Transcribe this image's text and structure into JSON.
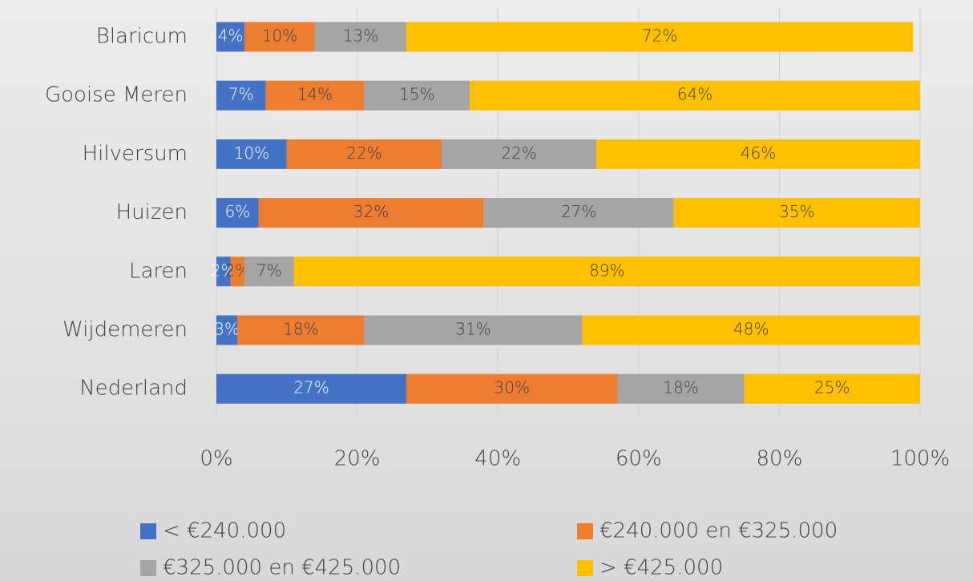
{
  "chart_data": {
    "type": "stacked_barh",
    "categories": [
      "Blaricum",
      "Gooise Meren",
      "Hilversum",
      "Huizen",
      "Laren",
      "Wijdemeren",
      "Nederland"
    ],
    "series": [
      {
        "name": "< €240.000",
        "color": "#4472c4",
        "values": [
          4,
          7,
          10,
          6,
          2,
          3,
          27
        ],
        "value_labels": [
          "4%",
          "7%",
          "10%",
          "6%",
          "2%",
          "3%",
          "27%"
        ]
      },
      {
        "name": "€240.000 en €325.000",
        "color": "#ed7d31",
        "values": [
          10,
          14,
          22,
          32,
          2,
          18,
          30
        ],
        "value_labels": [
          "10%",
          "14%",
          "22%",
          "32%",
          "2%",
          "18%",
          "30%"
        ]
      },
      {
        "name": "€325.000 en €425.000",
        "color": "#a5a5a5",
        "values": [
          13,
          15,
          22,
          27,
          7,
          31,
          18
        ],
        "value_labels": [
          "13%",
          "15%",
          "22%",
          "27%",
          "7%",
          "31%",
          "18%"
        ]
      },
      {
        "name": "> €425.000",
        "color": "#ffc000",
        "values": [
          72,
          64,
          46,
          35,
          89,
          48,
          25
        ],
        "value_labels": [
          "72%",
          "64%",
          "46%",
          "35%",
          "89%",
          "48%",
          "25%"
        ]
      }
    ],
    "xlim": [
      0,
      100
    ],
    "xticks": [
      {
        "value": 0,
        "label": "0%"
      },
      {
        "value": 20,
        "label": "20%"
      },
      {
        "value": 40,
        "label": "40%"
      },
      {
        "value": 60,
        "label": "60%"
      },
      {
        "value": 80,
        "label": "80%"
      },
      {
        "value": 100,
        "label": "100%"
      }
    ],
    "grid": true,
    "legend": "bottom"
  }
}
